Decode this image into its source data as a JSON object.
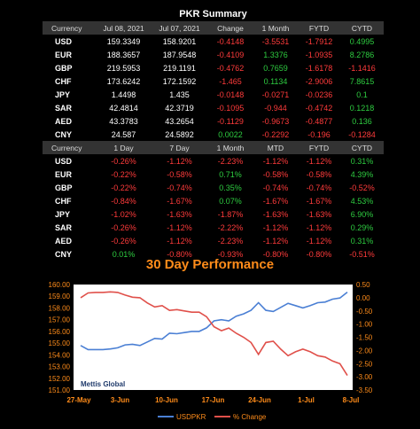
{
  "table1": {
    "title": "PKR Summary",
    "headers": [
      "Currency",
      "Jul 08, 2021",
      "Jul 07, 2021",
      "Change",
      "1 Month",
      "FYTD",
      "CYTD"
    ],
    "rows": [
      {
        "cur": "USD",
        "c1": "159.3349",
        "c2": "158.9201",
        "c3": "-0.4148",
        "c4": "-3.5531",
        "c5": "-1.7912",
        "c6": "0.4995"
      },
      {
        "cur": "EUR",
        "c1": "188.3657",
        "c2": "187.9548",
        "c3": "-0.4109",
        "c4": "1.3376",
        "c5": "-1.0935",
        "c6": "8.2786"
      },
      {
        "cur": "GBP",
        "c1": "219.5953",
        "c2": "219.1191",
        "c3": "-0.4762",
        "c4": "0.7659",
        "c5": "-1.6178",
        "c6": "-1.1416"
      },
      {
        "cur": "CHF",
        "c1": "173.6242",
        "c2": "172.1592",
        "c3": "-1.465",
        "c4": "0.1134",
        "c5": "-2.9006",
        "c6": "7.8615"
      },
      {
        "cur": "JPY",
        "c1": "1.4498",
        "c2": "1.435",
        "c3": "-0.0148",
        "c4": "-0.0271",
        "c5": "-0.0236",
        "c6": "0.1"
      },
      {
        "cur": "SAR",
        "c1": "42.4814",
        "c2": "42.3719",
        "c3": "-0.1095",
        "c4": "-0.944",
        "c5": "-0.4742",
        "c6": "0.1218"
      },
      {
        "cur": "AED",
        "c1": "43.3783",
        "c2": "43.2654",
        "c3": "-0.1129",
        "c4": "-0.9673",
        "c5": "-0.4877",
        "c6": "0.136"
      },
      {
        "cur": "CNY",
        "c1": "24.587",
        "c2": "24.5892",
        "c3": "0.0022",
        "c4": "-0.2292",
        "c5": "-0.196",
        "c6": "-0.1284"
      }
    ]
  },
  "table2": {
    "headers": [
      "Currency",
      "1 Day",
      "7 Day",
      "1 Month",
      "MTD",
      "FYTD",
      "CYTD"
    ],
    "rows": [
      {
        "cur": "USD",
        "c1": "-0.26%",
        "c2": "-1.12%",
        "c3": "-2.23%",
        "c4": "-1.12%",
        "c5": "-1.12%",
        "c6": "0.31%"
      },
      {
        "cur": "EUR",
        "c1": "-0.22%",
        "c2": "-0.58%",
        "c3": "0.71%",
        "c4": "-0.58%",
        "c5": "-0.58%",
        "c6": "4.39%"
      },
      {
        "cur": "GBP",
        "c1": "-0.22%",
        "c2": "-0.74%",
        "c3": "0.35%",
        "c4": "-0.74%",
        "c5": "-0.74%",
        "c6": "-0.52%"
      },
      {
        "cur": "CHF",
        "c1": "-0.84%",
        "c2": "-1.67%",
        "c3": "0.07%",
        "c4": "-1.67%",
        "c5": "-1.67%",
        "c6": "4.53%"
      },
      {
        "cur": "JPY",
        "c1": "-1.02%",
        "c2": "-1.63%",
        "c3": "-1.87%",
        "c4": "-1.63%",
        "c5": "-1.63%",
        "c6": "6.90%"
      },
      {
        "cur": "SAR",
        "c1": "-0.26%",
        "c2": "-1.12%",
        "c3": "-2.22%",
        "c4": "-1.12%",
        "c5": "-1.12%",
        "c6": "0.29%"
      },
      {
        "cur": "AED",
        "c1": "-0.26%",
        "c2": "-1.12%",
        "c3": "-2.23%",
        "c4": "-1.12%",
        "c5": "-1.12%",
        "c6": "0.31%"
      },
      {
        "cur": "CNY",
        "c1": "0.01%",
        "c2": "-0.80%",
        "c3": "-0.93%",
        "c4": "-0.80%",
        "c5": "-0.80%",
        "c6": "-0.51%"
      }
    ]
  },
  "colors": {
    "negative": "#ff3b3b",
    "positive": "#2ecc40",
    "usd_line": "#4a7fd4",
    "change_line": "#e0504a",
    "title": "#ff8c1a"
  },
  "chart_data": {
    "type": "line",
    "title": "30 Day Performance",
    "watermark": "Mettis Global",
    "x_tick_labels": [
      "27-May",
      "3-Jun",
      "10-Jun",
      "17-Jun",
      "24-Jun",
      "1-Jul",
      "8-Jul"
    ],
    "y_left": {
      "min": 151.0,
      "max": 160.0,
      "ticks": [
        "151.00",
        "152.00",
        "153.00",
        "154.00",
        "155.00",
        "156.00",
        "157.00",
        "158.00",
        "159.00",
        "160.00"
      ]
    },
    "y_right": {
      "min": -3.5,
      "max": 0.5,
      "ticks": [
        "-3.50",
        "-3.00",
        "-2.50",
        "-2.00",
        "-1.50",
        "-1.00",
        "-0.50",
        "0.00",
        "0.50"
      ]
    },
    "series": [
      {
        "name": "USDPKR",
        "axis": "left",
        "values": [
          154.8,
          154.45,
          154.45,
          154.45,
          154.5,
          154.6,
          154.85,
          154.9,
          154.8,
          155.1,
          155.4,
          155.35,
          155.85,
          155.8,
          155.9,
          156.0,
          156.0,
          156.3,
          156.9,
          157.0,
          156.9,
          157.3,
          157.5,
          157.8,
          158.45,
          157.8,
          157.7,
          158.05,
          158.4,
          158.2,
          158.0,
          158.2,
          158.45,
          158.5,
          158.75,
          158.85,
          159.35
        ]
      },
      {
        "name": "% Change",
        "axis": "right",
        "values": [
          0.0,
          0.18,
          0.2,
          0.2,
          0.22,
          0.2,
          0.1,
          0.02,
          0.0,
          -0.2,
          -0.35,
          -0.3,
          -0.48,
          -0.45,
          -0.5,
          -0.55,
          -0.55,
          -0.72,
          -1.1,
          -1.25,
          -1.15,
          -1.35,
          -1.5,
          -1.7,
          -2.15,
          -1.7,
          -1.65,
          -1.95,
          -2.2,
          -2.05,
          -1.95,
          -2.05,
          -2.2,
          -2.25,
          -2.4,
          -2.5,
          -2.95
        ]
      }
    ]
  }
}
